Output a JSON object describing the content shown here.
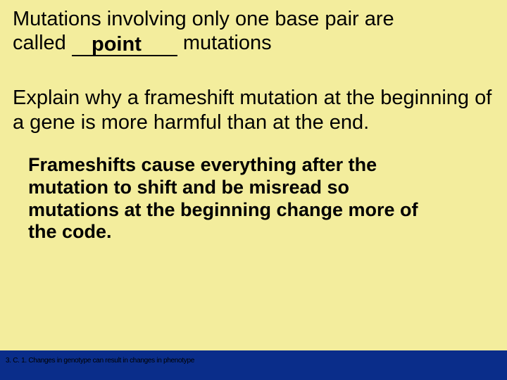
{
  "slide": {
    "background_color": "#f3ed9d",
    "bottom_band_color": "#0a2d8a",
    "text_color": "#000000",
    "question1": {
      "line1_a": "Mutations involving only one base pair  are ",
      "line2_a": "called ",
      "blank_answer": "point",
      "line2_b": " mutations",
      "fontsize": 29
    },
    "question2": {
      "text": "Explain why a frameshift mutation at the beginning of  a gene is more harmful than at the end.",
      "fontsize": 29
    },
    "answer2": {
      "text": "Frameshifts cause everything after the mutation to shift and be misread so mutations at the beginning change more of the code.",
      "fontsize": 27,
      "max_width": 570
    },
    "footnote": {
      "text": "3. C. 1. Changes in genotype can result in changes in phenotype",
      "fontsize": 10
    }
  }
}
